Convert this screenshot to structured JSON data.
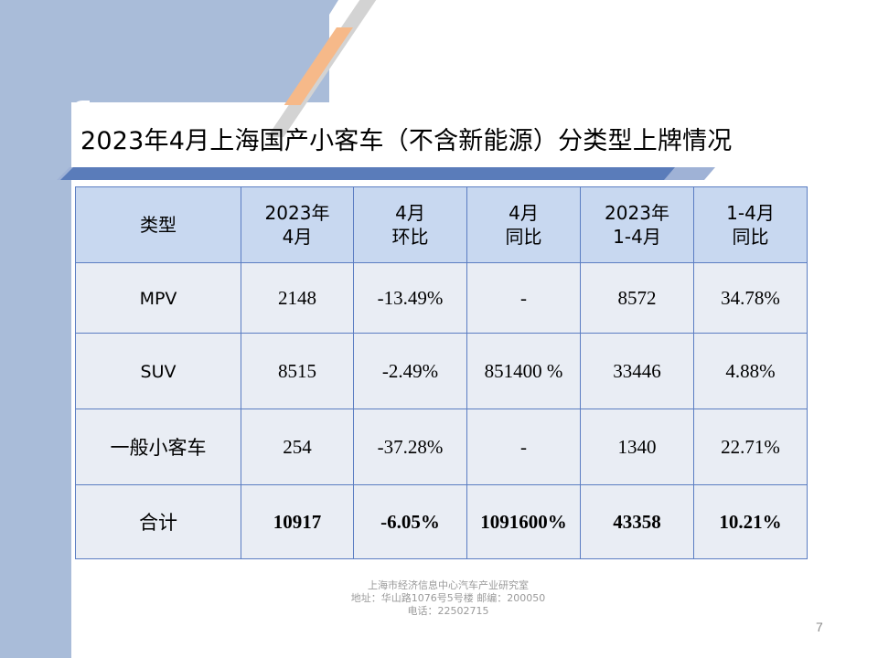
{
  "title": "2023年4月上海国产小客车（不含新能源）分类型上牌情况",
  "table": {
    "headers": [
      [
        "类型"
      ],
      [
        "2023年",
        "4月"
      ],
      [
        "4月",
        "环比"
      ],
      [
        "4月",
        "同比"
      ],
      [
        "2023年",
        "1-4月"
      ],
      [
        "1-4月",
        "同比"
      ]
    ],
    "rows": [
      [
        "MPV",
        "2148",
        "-13.49%",
        "-",
        "8572",
        "34.78%"
      ],
      [
        "SUV",
        "8515",
        "-2.49%",
        "851400 %",
        "33446",
        "4.88%"
      ],
      [
        "一般小客车",
        "254",
        "-37.28%",
        "-",
        "1340",
        "22.71%"
      ],
      [
        "合计",
        "10917",
        "-6.05%",
        "1091600%",
        "43358",
        "10.21%"
      ]
    ]
  },
  "footer": {
    "line1": "上海市经济信息中心汽车产业研究室",
    "line2": "地址：华山路1076号5号楼    邮编：200050",
    "line3": "电话：22502715"
  },
  "page_number": "7",
  "colors": {
    "header_bg": "#c8d8f0",
    "cell_bg": "#e9edf4",
    "border": "#5b7dc2",
    "decor_blue": "#a9bcd9",
    "accent_orange": "#f6b989"
  }
}
